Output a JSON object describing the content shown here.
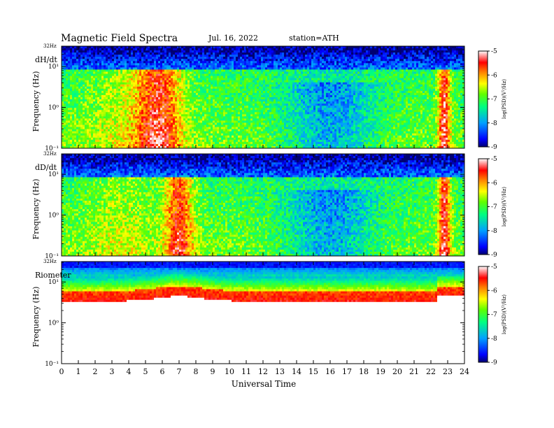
{
  "header": {
    "title": "Magnetic  Field  Spectra",
    "date": "Jul.  16, 2022",
    "station": "station=ATH"
  },
  "xlabel": "Universal Time",
  "colors": {
    "colormap": [
      "#000070",
      "#0000ff",
      "#00a0ff",
      "#00ff80",
      "#60ff00",
      "#ffff00",
      "#ff8000",
      "#ff0000",
      "#ffffff"
    ]
  },
  "chart_data": [
    {
      "type": "heatmap",
      "panel_label": "dH/dt",
      "ylabel": "Frequency (Hz)",
      "top_freq_label": "32Hz",
      "y_ticks": [
        "10¹",
        "10⁰",
        "10⁻¹"
      ],
      "x_ticks": [
        0,
        1,
        2,
        3,
        4,
        5,
        6,
        7,
        8,
        9,
        10,
        11,
        12,
        13,
        14,
        15,
        16,
        17,
        18,
        19,
        20,
        21,
        22,
        23,
        24
      ],
      "xlim": [
        0,
        24
      ],
      "ylim_log10_hz": [
        -1,
        1.5
      ],
      "colorbar": {
        "label": "log(PSD)(V²/Hz)",
        "ticks": [
          "-5",
          "-6",
          "-7",
          "-8",
          "-9"
        ],
        "range": [
          -9,
          -5
        ]
      }
    },
    {
      "type": "heatmap",
      "panel_label": "dD/dt",
      "ylabel": "Frequency (Hz)",
      "top_freq_label": "32Hz",
      "y_ticks": [
        "10¹",
        "10⁰",
        "10⁻¹"
      ],
      "x_ticks": [
        0,
        1,
        2,
        3,
        4,
        5,
        6,
        7,
        8,
        9,
        10,
        11,
        12,
        13,
        14,
        15,
        16,
        17,
        18,
        19,
        20,
        21,
        22,
        23,
        24
      ],
      "xlim": [
        0,
        24
      ],
      "ylim_log10_hz": [
        -1,
        1.5
      ],
      "colorbar": {
        "label": "log(PSD)(V²/Hz)",
        "ticks": [
          "-5",
          "-6",
          "-7",
          "-8",
          "-9"
        ],
        "range": [
          -9,
          -5
        ]
      }
    },
    {
      "type": "heatmap",
      "panel_label": "Riometer",
      "ylabel": "Frequency (Hz)",
      "top_freq_label": "32Hz",
      "y_ticks": [
        "10¹",
        "10⁰",
        "10⁻¹"
      ],
      "x_ticks": [
        0,
        1,
        2,
        3,
        4,
        5,
        6,
        7,
        8,
        9,
        10,
        11,
        12,
        13,
        14,
        15,
        16,
        17,
        18,
        19,
        20,
        21,
        22,
        23,
        24
      ],
      "xlim": [
        0,
        24
      ],
      "ylim_log10_hz": [
        -1,
        1.5
      ],
      "colorbar": {
        "label": "log(PSD)(V²/Hz)",
        "ticks": [
          "-5",
          "-6",
          "-7",
          "-8",
          "-9"
        ],
        "range": [
          -9,
          -5
        ]
      }
    }
  ]
}
